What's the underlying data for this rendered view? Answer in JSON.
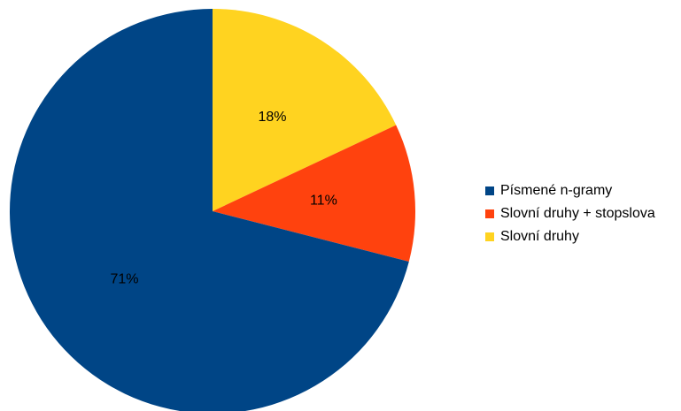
{
  "chart_data": {
    "type": "pie",
    "title": "",
    "slices": [
      {
        "name": "Písmené n-gramy",
        "value": 71,
        "label": "71%",
        "color": "#004586"
      },
      {
        "name": "Slovní druhy + stopslova",
        "value": 11,
        "label": "11%",
        "color": "#ff420e"
      },
      {
        "name": "Slovní druhy",
        "value": 18,
        "label": "18%",
        "color": "#ffd320"
      }
    ],
    "start_angle_deg": 0,
    "direction": "clockwise",
    "legend_position": "right"
  }
}
